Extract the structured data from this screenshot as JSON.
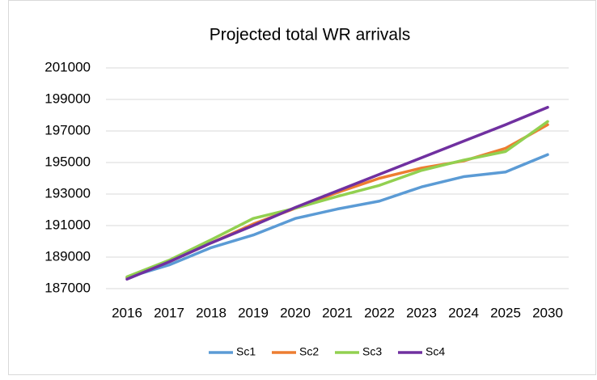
{
  "chart_data": {
    "type": "line",
    "title": "Projected total WR arrivals",
    "categories": [
      "2016",
      "2017",
      "2018",
      "2019",
      "2020",
      "2021",
      "2022",
      "2023",
      "2024",
      "2025",
      "2030"
    ],
    "series": [
      {
        "name": "Sc1",
        "color": "#5b9bd5",
        "values": [
          187700,
          188500,
          189600,
          190400,
          191450,
          192050,
          192550,
          193450,
          194100,
          194400,
          195500
        ]
      },
      {
        "name": "Sc2",
        "color": "#ed7d31",
        "values": [
          187700,
          188700,
          189900,
          191100,
          192100,
          193100,
          194000,
          194650,
          195100,
          195900,
          197400
        ]
      },
      {
        "name": "Sc3",
        "color": "#92d050",
        "values": [
          187750,
          188800,
          190100,
          191450,
          192100,
          192850,
          193550,
          194500,
          195150,
          195700,
          197600
        ]
      },
      {
        "name": "Sc4",
        "color": "#7030a0",
        "values": [
          187600,
          188700,
          189900,
          191000,
          192150,
          193200,
          194250,
          195300,
          196350,
          197400,
          198500
        ]
      }
    ],
    "ylim": [
      187000,
      201000
    ],
    "yticks": [
      187000,
      189000,
      191000,
      193000,
      195000,
      197000,
      199000,
      201000
    ],
    "grid": true
  }
}
